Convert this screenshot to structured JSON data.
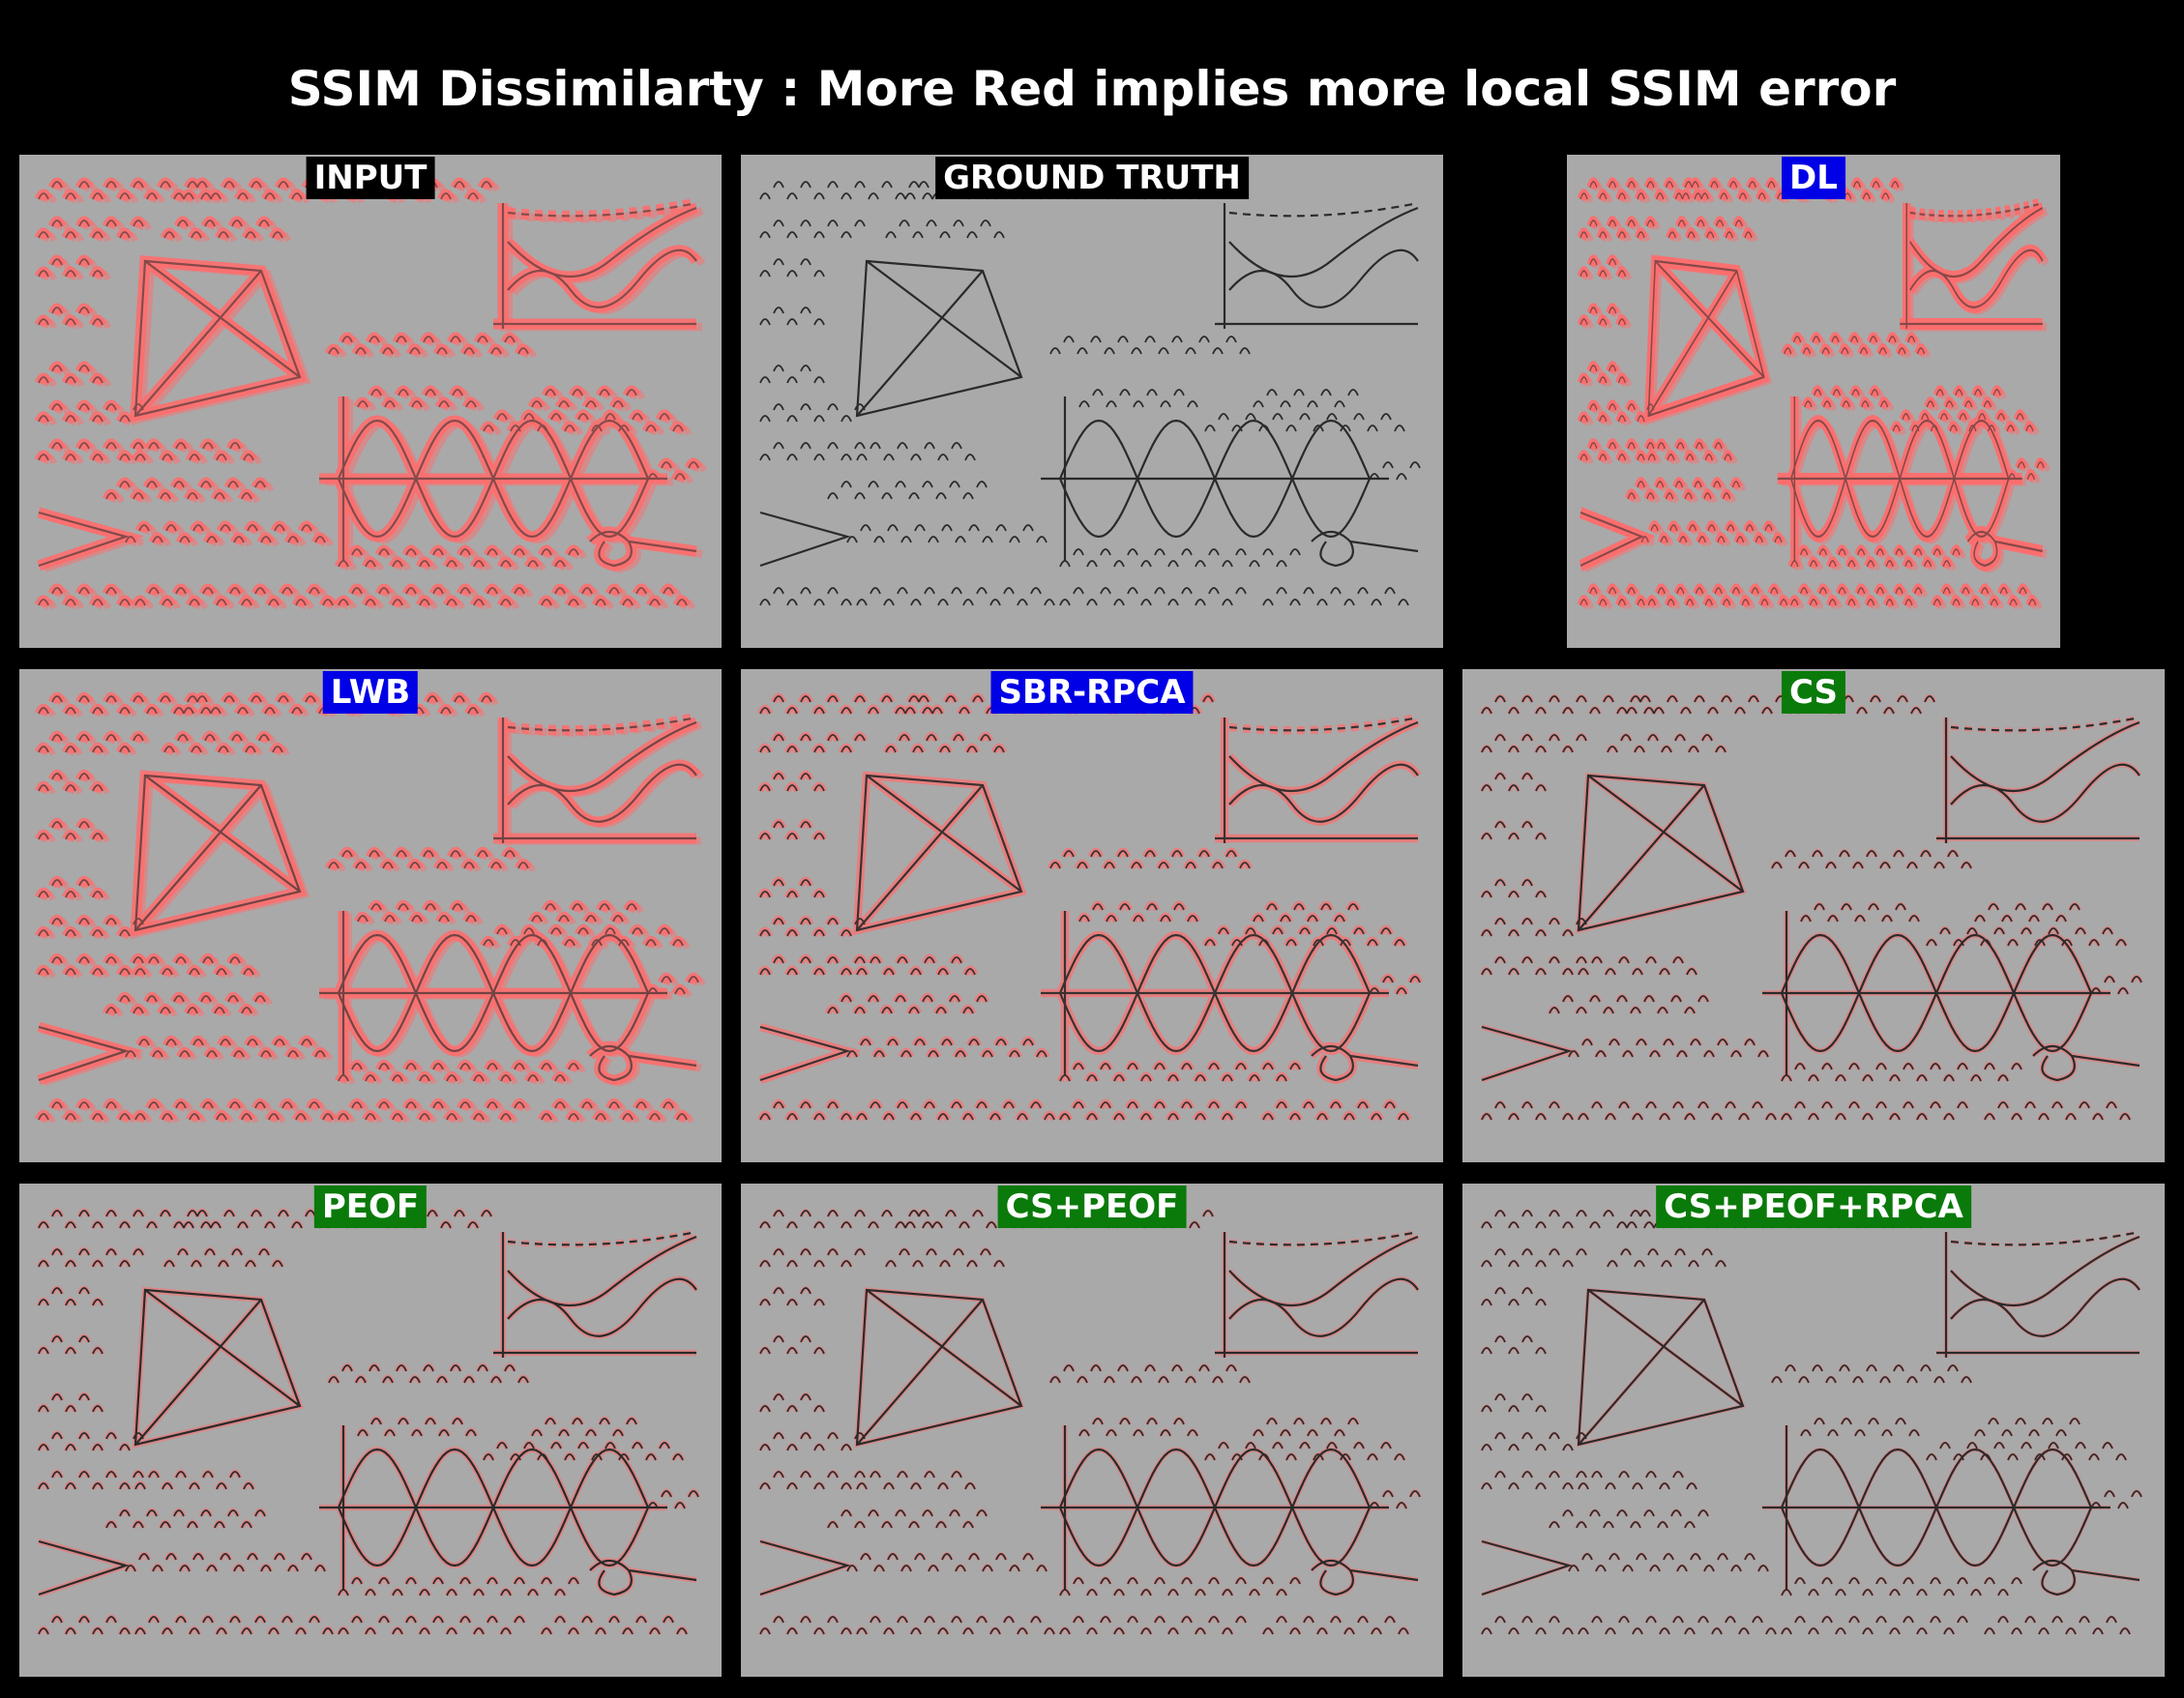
{
  "title": "SSIM Dissimilarty : More Red implies more local SSIM error",
  "colors": {
    "background": "#000000",
    "board": "#a9a9a9",
    "ink": "#2a2a2a",
    "error_red": "#ff6e6e",
    "label_black": "#000000",
    "label_blue": "#0000e6",
    "label_green": "#0a7a0a"
  },
  "panels": [
    {
      "label": "INPUT",
      "label_color": "#000000",
      "error_level": 0.9,
      "blur": 1.0
    },
    {
      "label": "GROUND TRUTH",
      "label_color": "#000000",
      "error_level": 0.0,
      "blur": 0.0
    },
    {
      "label": "DL",
      "label_color": "#0000e6",
      "error_level": 1.0,
      "blur": 1.0
    },
    {
      "label": "LWB",
      "label_color": "#0000e6",
      "error_level": 0.85,
      "blur": 0.8
    },
    {
      "label": "SBR-RPCA",
      "label_color": "#0000e6",
      "error_level": 0.6,
      "blur": 0.2
    },
    {
      "label": "CS",
      "label_color": "#0a7a0a",
      "error_level": 0.3,
      "blur": 0.0
    },
    {
      "label": "PEOF",
      "label_color": "#0a7a0a",
      "error_level": 0.35,
      "blur": 0.0
    },
    {
      "label": "CS+PEOF",
      "label_color": "#0a7a0a",
      "error_level": 0.25,
      "blur": 0.0
    },
    {
      "label": "CS+PEOF+RPCA",
      "label_color": "#0a7a0a",
      "error_level": 0.15,
      "blur": 0.0
    }
  ]
}
